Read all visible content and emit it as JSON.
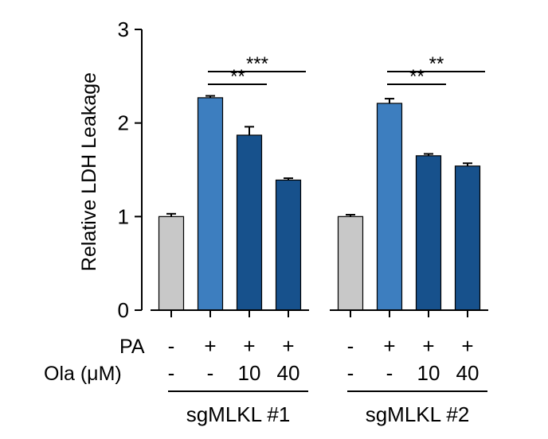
{
  "chart_data": {
    "type": "bar",
    "ylabel": "Relative LDH Leakage",
    "ylim": [
      0,
      3
    ],
    "yticks": [
      "0",
      "1",
      "2",
      "3"
    ],
    "row_labels": [
      "PA",
      "Ola (μM)"
    ],
    "groups": [
      {
        "label": "sgMLKL #1",
        "bars": [
          {
            "value": 1.0,
            "error": 0.03,
            "pa": "-",
            "ola": "-",
            "color": "#c8c8c8"
          },
          {
            "value": 2.27,
            "error": 0.02,
            "pa": "+",
            "ola": "-",
            "color": "#3d7ebf"
          },
          {
            "value": 1.87,
            "error": 0.09,
            "pa": "+",
            "ola": "10",
            "color": "#17518c"
          },
          {
            "value": 1.39,
            "error": 0.02,
            "pa": "+",
            "ola": "40",
            "color": "#17518c"
          }
        ],
        "sig": [
          {
            "from": 1,
            "to": 2,
            "label": "**"
          },
          {
            "from": 1,
            "to": 3,
            "label": "***"
          }
        ]
      },
      {
        "label": "sgMLKL #2",
        "bars": [
          {
            "value": 1.0,
            "error": 0.02,
            "pa": "-",
            "ola": "-",
            "color": "#c8c8c8"
          },
          {
            "value": 2.21,
            "error": 0.05,
            "pa": "+",
            "ola": "-",
            "color": "#3d7ebf"
          },
          {
            "value": 1.65,
            "error": 0.02,
            "pa": "+",
            "ola": "10",
            "color": "#17518c"
          },
          {
            "value": 1.54,
            "error": 0.03,
            "pa": "+",
            "ola": "40",
            "color": "#17518c"
          }
        ],
        "sig": [
          {
            "from": 1,
            "to": 2,
            "label": "**"
          },
          {
            "from": 1,
            "to": 3,
            "label": "**"
          }
        ]
      }
    ]
  }
}
